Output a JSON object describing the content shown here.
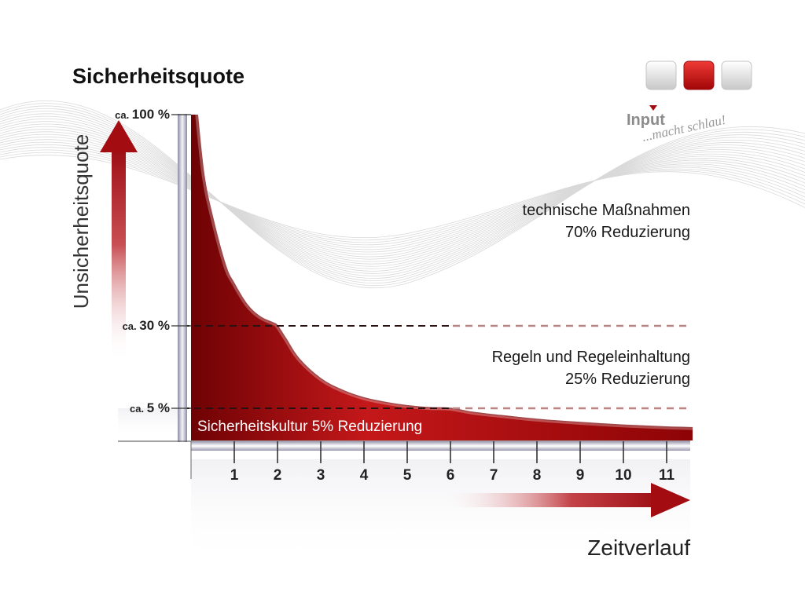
{
  "title": "Sicherheitsquote",
  "logo": {
    "brand": "Input",
    "tagline": "...macht schlau!"
  },
  "chart_data": {
    "type": "area",
    "title": "Sicherheitsquote",
    "ylabel": "Unsicherheitsquote",
    "xlabel": "Zeitverlauf",
    "x_ticks": [
      "1",
      "2",
      "3",
      "4",
      "5",
      "6",
      "7",
      "8",
      "9",
      "10",
      "11"
    ],
    "xlim": [
      0,
      11.6
    ],
    "ylim": [
      0,
      100
    ],
    "y_ticks": [
      {
        "value": 100,
        "prefix": "ca.",
        "label": "100 %"
      },
      {
        "value": 30,
        "prefix": "ca.",
        "label": "30 %"
      },
      {
        "value": 5,
        "prefix": "ca.",
        "label": "5 %"
      }
    ],
    "series": [
      {
        "x": [
          0.15,
          0.3,
          0.5,
          0.8,
          1.0,
          1.3,
          1.6,
          1.9,
          2.0,
          2.2,
          2.5,
          3.0,
          3.5,
          4.0,
          4.5,
          5.0,
          5.5,
          6.0,
          6.5,
          7,
          8,
          9,
          10,
          11,
          11.6
        ],
        "y": [
          100,
          80,
          66,
          50,
          44,
          37,
          33,
          31,
          30,
          26,
          20,
          14,
          10.5,
          8.2,
          6.8,
          5.8,
          5.2,
          5,
          4.4,
          4.0,
          3.3,
          2.8,
          2.4,
          2.1,
          2.0
        ]
      }
    ],
    "reference_lines": [
      30,
      5
    ],
    "annotations": [
      {
        "line1": "technische Maßnahmen",
        "line2": "70% Reduzierung"
      },
      {
        "line1": "Regeln und Regeleinhaltung",
        "line2": "25% Reduzierung"
      },
      {
        "line1": "Sicherheitskultur 5% Reduzierung"
      }
    ],
    "colors": {
      "area": "#b50e10",
      "area_dark": "#6e0204",
      "arrow": "#a30d12",
      "dashed": "#b88484"
    }
  }
}
